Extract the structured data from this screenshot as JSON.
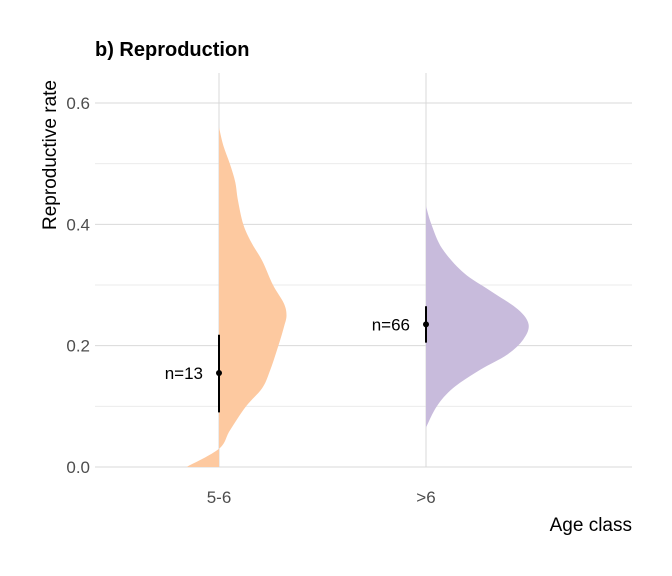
{
  "chart_data": {
    "type": "violin",
    "title": "b) Reproduction",
    "xlabel": "Age class",
    "ylabel": "Reproductive rate",
    "ylim": [
      0,
      0.6
    ],
    "yticks": [
      "0.0",
      "0.2",
      "0.4",
      "0.6"
    ],
    "categories": [
      "5-6",
      ">6"
    ],
    "grid": true,
    "groups": [
      {
        "category": "5-6",
        "color": "#fdc9a0",
        "n_label": "n=13",
        "mean": 0.155,
        "ci": [
          0.09,
          0.218
        ],
        "density": [
          [
            -0.06,
            0
          ],
          [
            0.0,
            0.03
          ],
          [
            0.02,
            0.06
          ],
          [
            0.05,
            0.1
          ],
          [
            0.08,
            0.13
          ],
          [
            0.095,
            0.16
          ],
          [
            0.11,
            0.2
          ],
          [
            0.12,
            0.23
          ],
          [
            0.125,
            0.25
          ],
          [
            0.12,
            0.27
          ],
          [
            0.1,
            0.3
          ],
          [
            0.08,
            0.34
          ],
          [
            0.06,
            0.37
          ],
          [
            0.045,
            0.4
          ],
          [
            0.035,
            0.44
          ],
          [
            0.03,
            0.47
          ],
          [
            0.02,
            0.5
          ],
          [
            0.008,
            0.53
          ],
          [
            0.0,
            0.56
          ]
        ]
      },
      {
        "category": ">6",
        "color": "#c8bbdc",
        "n_label": "n=66",
        "mean": 0.235,
        "ci": [
          0.205,
          0.265
        ],
        "density": [
          [
            0.0,
            0.065
          ],
          [
            0.02,
            0.1
          ],
          [
            0.05,
            0.13
          ],
          [
            0.1,
            0.16
          ],
          [
            0.15,
            0.185
          ],
          [
            0.18,
            0.21
          ],
          [
            0.19,
            0.235
          ],
          [
            0.17,
            0.26
          ],
          [
            0.12,
            0.29
          ],
          [
            0.07,
            0.32
          ],
          [
            0.03,
            0.36
          ],
          [
            0.01,
            0.4
          ],
          [
            0.0,
            0.43
          ]
        ]
      }
    ]
  }
}
